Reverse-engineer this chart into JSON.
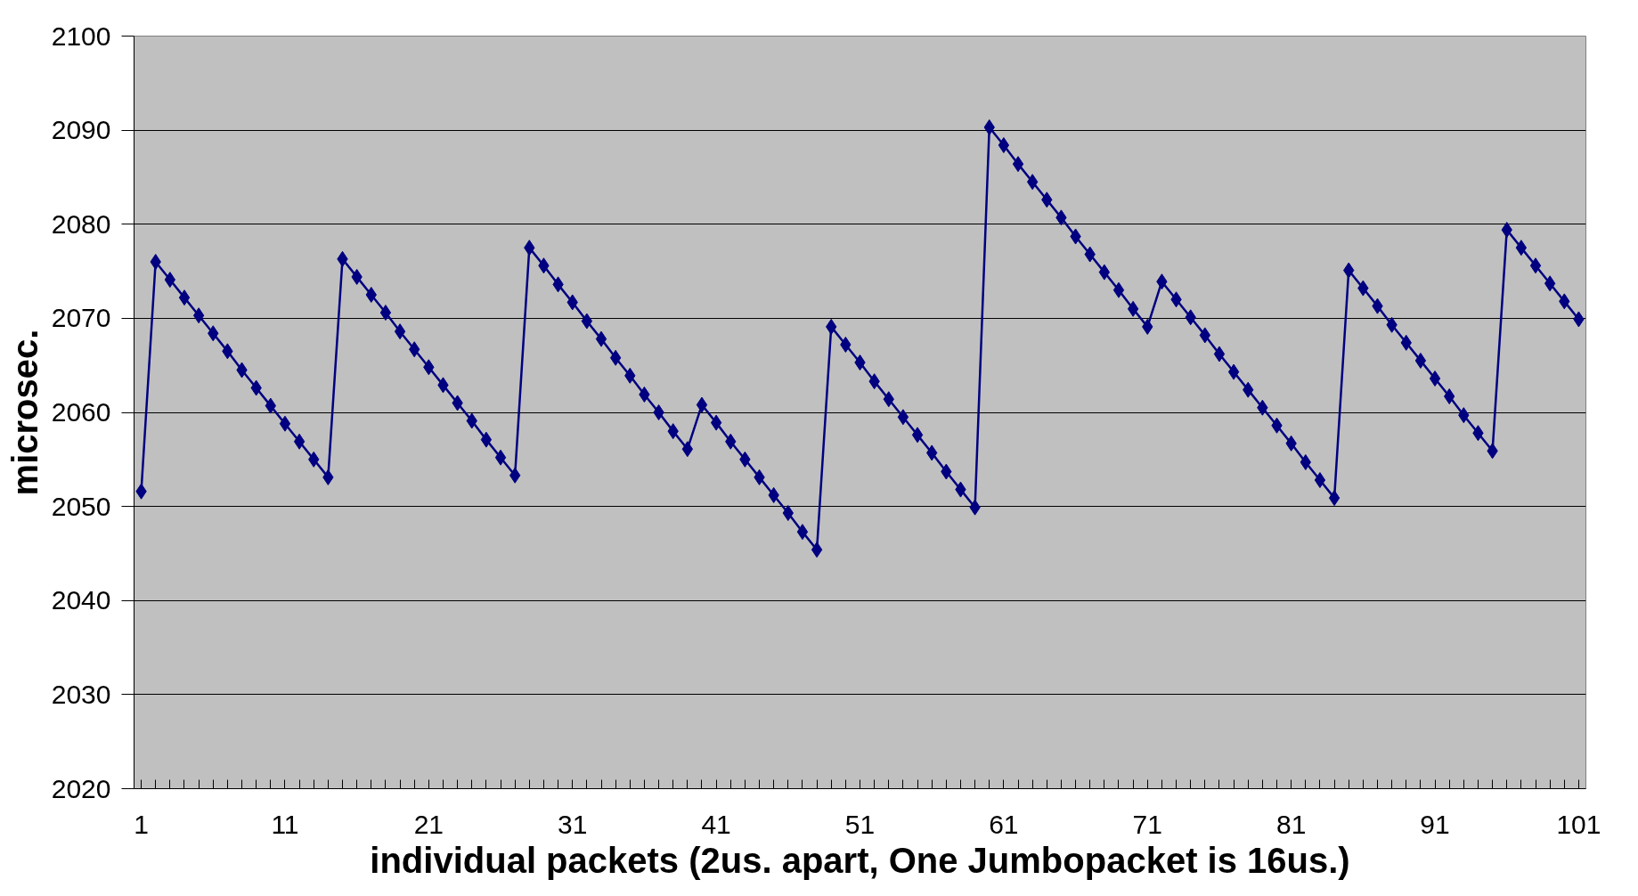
{
  "chart_data": {
    "type": "line",
    "xlabel": "individual packets (2us. apart, One Jumbopacket is 16us.)",
    "ylabel": "microsec.",
    "categories": [
      "1",
      null,
      null,
      null,
      null,
      null,
      null,
      null,
      null,
      null,
      "11",
      null,
      null,
      null,
      null,
      null,
      null,
      null,
      null,
      null,
      "21",
      null,
      null,
      null,
      null,
      null,
      null,
      null,
      null,
      null,
      "31",
      null,
      null,
      null,
      null,
      null,
      null,
      null,
      null,
      null,
      "41",
      null,
      null,
      null,
      null,
      null,
      null,
      null,
      null,
      null,
      "51",
      null,
      null,
      null,
      null,
      null,
      null,
      null,
      null,
      null,
      "61",
      null,
      null,
      null,
      null,
      null,
      null,
      null,
      null,
      null,
      "71",
      null,
      null,
      null,
      null,
      null,
      null,
      null,
      null,
      null,
      "81",
      null,
      null,
      null,
      null,
      null,
      null,
      null,
      null,
      null,
      "91",
      null,
      null,
      null,
      null,
      null,
      null,
      null,
      null,
      null,
      "101"
    ],
    "series": [
      {
        "color": "#000080",
        "values": [
          2051.6,
          2076.0,
          2074.1,
          2072.2,
          2070.3,
          2068.4,
          2066.5,
          2064.5,
          2062.6,
          2060.7,
          2058.8,
          2056.9,
          2055.0,
          2053.1,
          2076.3,
          2074.4,
          2072.5,
          2070.6,
          2068.6,
          2066.7,
          2064.8,
          2062.9,
          2061.0,
          2059.1,
          2057.1,
          2055.2,
          2053.3,
          2077.5,
          2075.6,
          2073.6,
          2071.7,
          2069.7,
          2067.8,
          2065.8,
          2063.9,
          2061.9,
          2060.0,
          2058.0,
          2056.1,
          2060.8,
          2058.9,
          2056.9,
          2055.0,
          2053.1,
          2051.2,
          2049.3,
          2047.3,
          2045.4,
          2069.1,
          2067.2,
          2065.3,
          2063.3,
          2061.4,
          2059.5,
          2057.6,
          2055.7,
          2053.7,
          2051.8,
          2049.9,
          2090.3,
          2088.4,
          2086.4,
          2084.5,
          2082.6,
          2080.7,
          2078.7,
          2076.8,
          2074.9,
          2073.0,
          2071.0,
          2069.1,
          2073.9,
          2072.0,
          2070.1,
          2068.2,
          2066.2,
          2064.3,
          2062.4,
          2060.5,
          2058.6,
          2056.7,
          2054.7,
          2052.8,
          2050.9,
          2075.1,
          2073.2,
          2071.3,
          2069.3,
          2067.4,
          2065.5,
          2063.6,
          2061.7,
          2059.7,
          2057.8,
          2055.9,
          2079.4,
          2077.5,
          2075.6,
          2073.7,
          2071.8,
          2069.9
        ]
      }
    ],
    "ylim": [
      2020,
      2100
    ],
    "yticks": [
      2020,
      2030,
      2040,
      2050,
      2060,
      2070,
      2080,
      2090,
      2100
    ],
    "grid": "y",
    "marker": "diamond",
    "line_style": "solid"
  }
}
